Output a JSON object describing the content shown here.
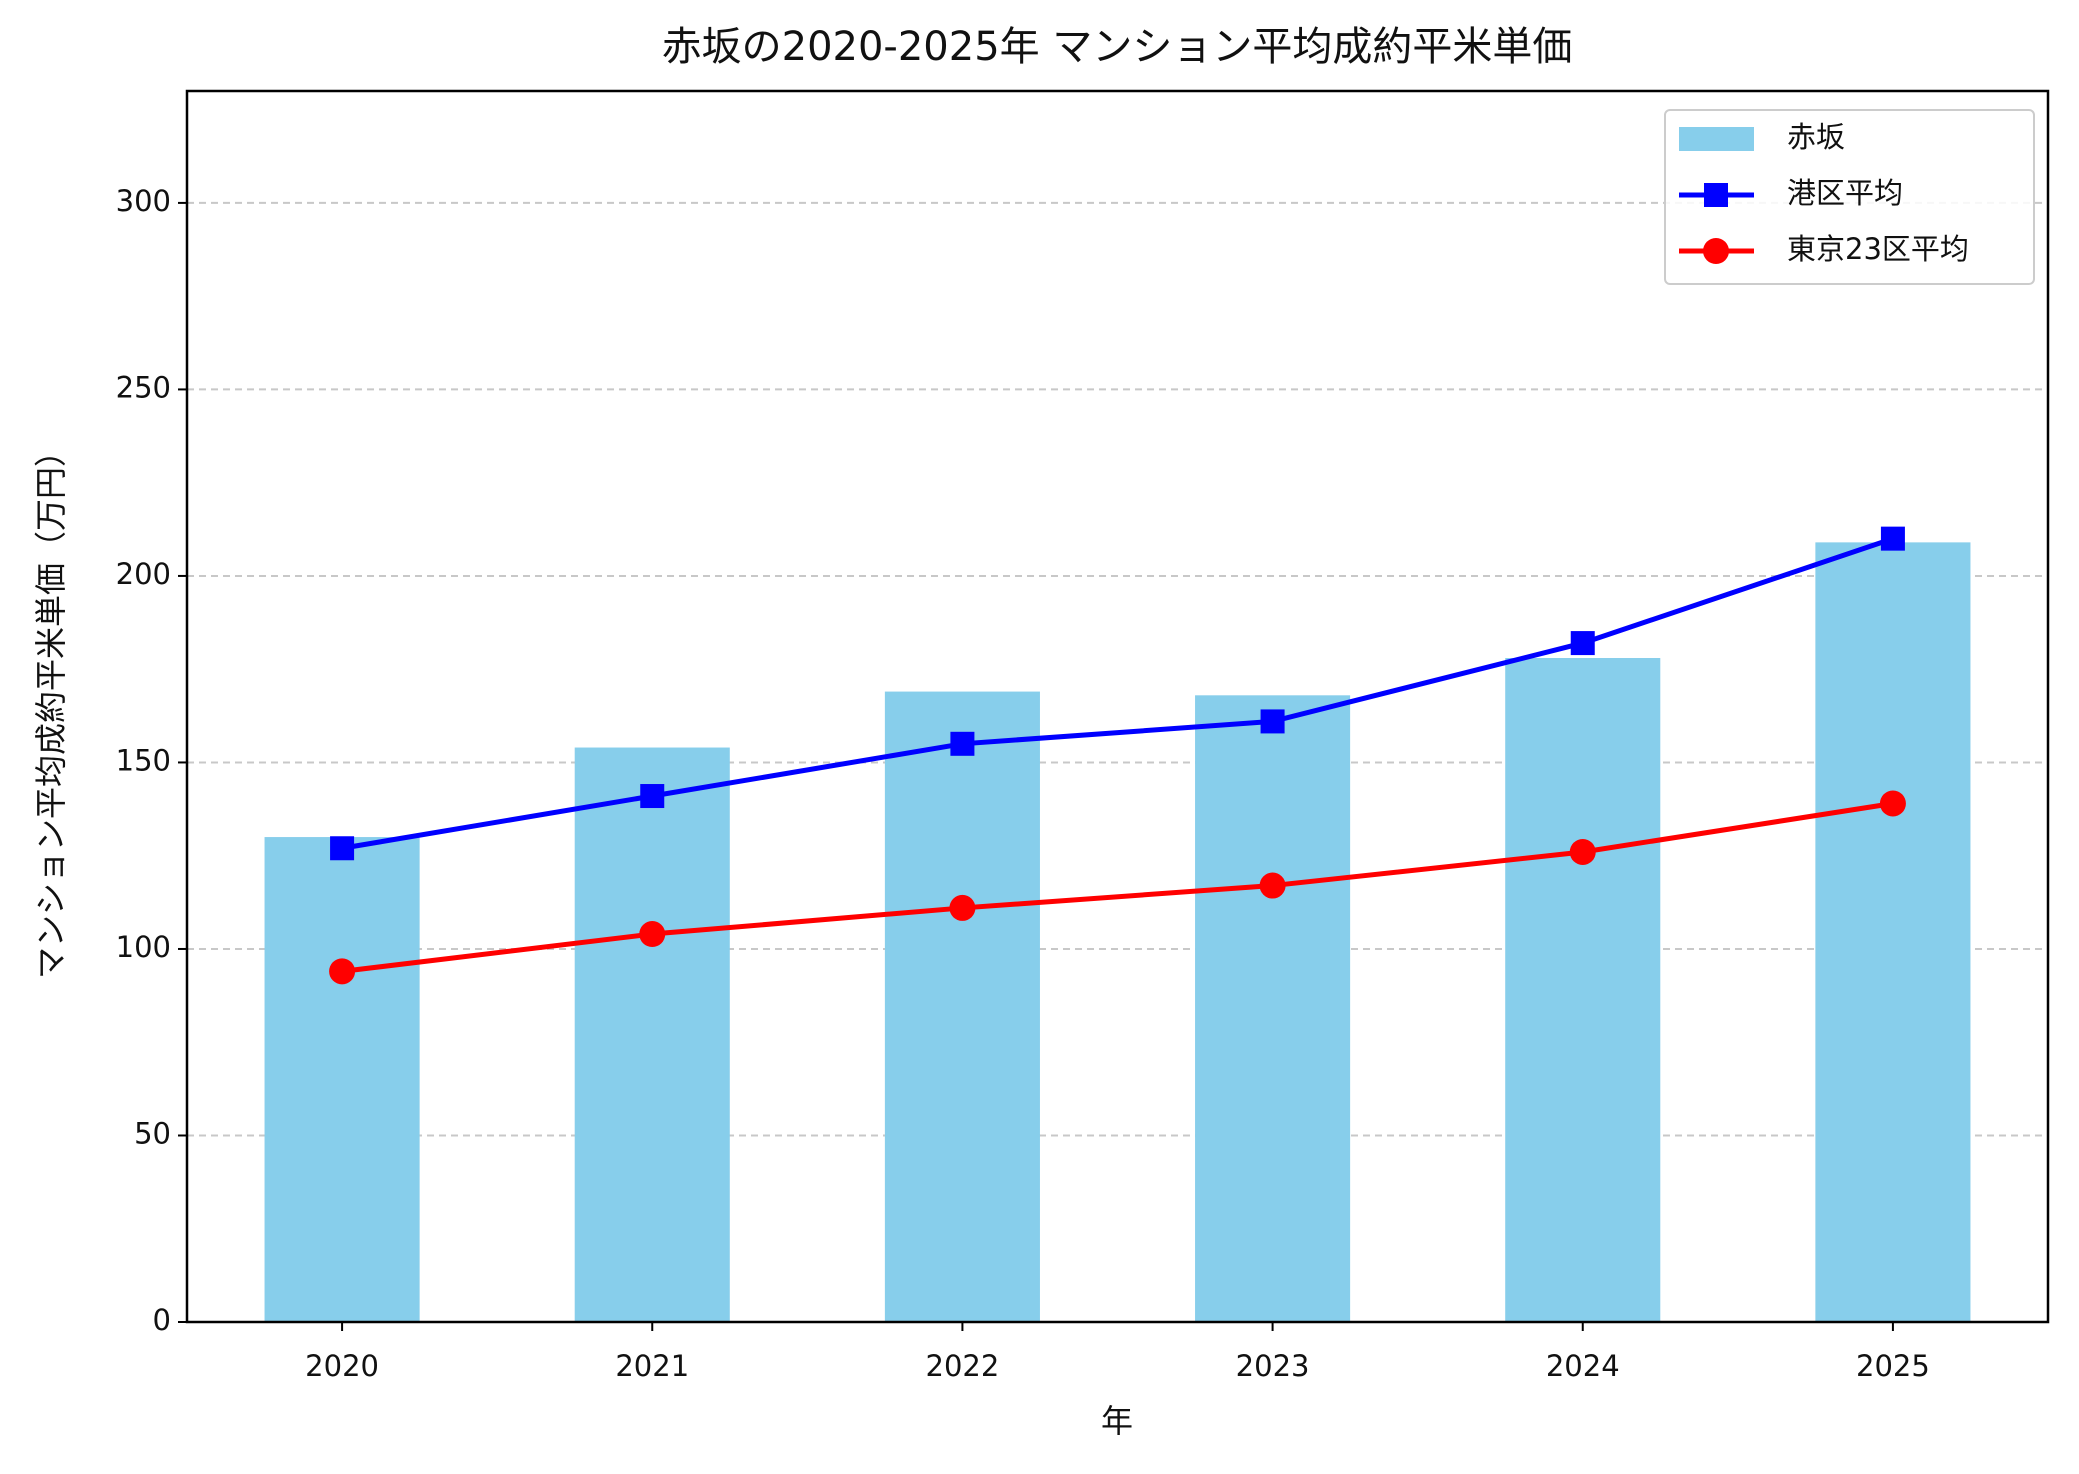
{
  "chart_data": {
    "type": "bar",
    "title": "赤坂の2020-2025年 マンション平均成約平米単価",
    "x_label": "年",
    "y_label": "マンション平均成約平米単価（万円）",
    "categories": [
      "2020",
      "2021",
      "2022",
      "2023",
      "2024",
      "2025"
    ],
    "series": [
      {
        "name": "赤坂",
        "type": "bar",
        "color": "#87ceeb",
        "values": [
          130,
          154,
          169,
          168,
          178,
          209
        ]
      },
      {
        "name": "港区平均",
        "type": "line",
        "marker": "square",
        "color": "#0000ff",
        "values": [
          127,
          141,
          155,
          161,
          182,
          210
        ]
      },
      {
        "name": "東京23区平均",
        "type": "line",
        "marker": "circle",
        "color": "#ff0000",
        "values": [
          94,
          104,
          111,
          117,
          126,
          139
        ]
      }
    ],
    "ylim": [
      0,
      330
    ],
    "yticks": [
      0,
      50,
      100,
      150,
      200,
      250,
      300
    ],
    "grid": true,
    "legend": "upper right"
  }
}
